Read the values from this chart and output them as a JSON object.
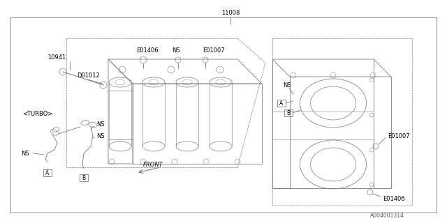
{
  "bg_color": "#ffffff",
  "line_color": "#7a7a7a",
  "text_color": "#000000",
  "fig_width": 6.4,
  "fig_height": 3.2,
  "dpi": 100,
  "part_number": "A004001314",
  "label_11008": "11008",
  "label_10941": "10941",
  "label_D01012": "D01012",
  "label_E01406_top": "E01406",
  "label_NS_top": "NS",
  "label_E01007_top": "E01007",
  "label_turbo": "<TURBO>",
  "label_NS_a": "NS",
  "label_NS_b": "NS",
  "label_NS_left": "NS",
  "label_FRONT": "FRONT",
  "label_NS_right": "NS",
  "label_E01007_right": "E01007",
  "label_E01406_bot": "E01406"
}
